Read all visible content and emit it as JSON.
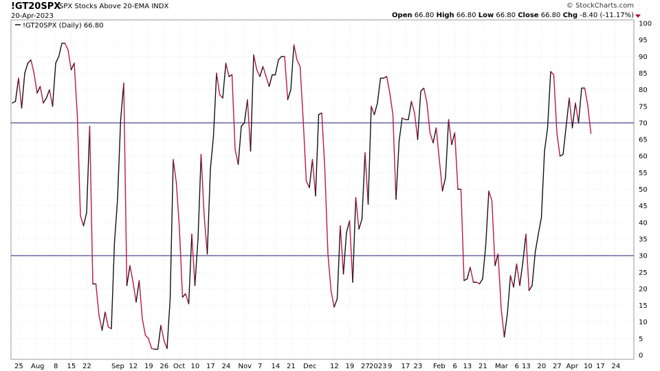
{
  "header": {
    "symbol": "!GT20SPX",
    "description": "SPX Stocks Above 20-EMA INDX",
    "date": "20-Apr-2023",
    "credit": "© StockCharts.com",
    "open_label": "Open",
    "open": "66.80",
    "high_label": "High",
    "high": "66.80",
    "low_label": "Low",
    "low": "66.80",
    "close_label": "Close",
    "close": "66.80",
    "chg_label": "Chg",
    "chg": "-8.40 (-11.17%)"
  },
  "legend": {
    "text": "!GT20SPX (Daily) 66.80"
  },
  "colors": {
    "up": "#111111",
    "down": "#c0143c",
    "reference": "#1a1a6e",
    "grid": "#d9d9d9"
  },
  "chart_data": {
    "type": "line",
    "title": "SPX Stocks Above 20-EMA",
    "ylim": [
      0,
      100
    ],
    "yticks": [
      0,
      5,
      10,
      15,
      20,
      25,
      30,
      35,
      40,
      45,
      50,
      55,
      60,
      65,
      70,
      75,
      80,
      85,
      90,
      95,
      100
    ],
    "reference_lines": [
      70,
      30
    ],
    "x_count": 190,
    "xticks": [
      {
        "i": 2,
        "label": "25"
      },
      {
        "i": 8,
        "label": "Aug"
      },
      {
        "i": 14,
        "label": "8"
      },
      {
        "i": 19,
        "label": "15"
      },
      {
        "i": 24,
        "label": "22"
      },
      {
        "i": 34,
        "label": "Sep"
      },
      {
        "i": 39,
        "label": "12"
      },
      {
        "i": 44,
        "label": "19"
      },
      {
        "i": 49,
        "label": "26"
      },
      {
        "i": 54,
        "label": "Oct"
      },
      {
        "i": 59,
        "label": "10"
      },
      {
        "i": 64,
        "label": "17"
      },
      {
        "i": 69,
        "label": "24"
      },
      {
        "i": 75,
        "label": "Nov"
      },
      {
        "i": 80,
        "label": "7"
      },
      {
        "i": 85,
        "label": "14"
      },
      {
        "i": 90,
        "label": "21"
      },
      {
        "i": 96,
        "label": "Dec"
      },
      {
        "i": 104,
        "label": "12"
      },
      {
        "i": 109,
        "label": "19"
      },
      {
        "i": 114,
        "label": "27"
      },
      {
        "i": 118,
        "label": "2023"
      },
      {
        "i": 122,
        "label": "9"
      },
      {
        "i": 127,
        "label": "17"
      },
      {
        "i": 131,
        "label": "23"
      },
      {
        "i": 138,
        "label": "Feb"
      },
      {
        "i": 143,
        "label": "6"
      },
      {
        "i": 147,
        "label": "13"
      },
      {
        "i": 152,
        "label": "21"
      },
      {
        "i": 158,
        "label": "Mar"
      },
      {
        "i": 163,
        "label": "6"
      },
      {
        "i": 166,
        "label": "13"
      },
      {
        "i": 171,
        "label": "20"
      },
      {
        "i": 176,
        "label": "27"
      },
      {
        "i": 181,
        "label": "Apr"
      },
      {
        "i": 186,
        "label": "10"
      },
      {
        "i": 190,
        "label": "17"
      },
      {
        "i": 195,
        "label": "24"
      }
    ],
    "series": [
      {
        "values": [
          76,
          76.5,
          83.5,
          74.5,
          85,
          88,
          89,
          85,
          79,
          81,
          76,
          77.5,
          80,
          75,
          88,
          90,
          94,
          94,
          92,
          86,
          88,
          72,
          42,
          39,
          43,
          69,
          21.5,
          21.5,
          12,
          7.5,
          13,
          8.5,
          8,
          34,
          47,
          71,
          82,
          21,
          27,
          22,
          16,
          22.5,
          11,
          6,
          5,
          2,
          1.8,
          1.8,
          9,
          4.5,
          2,
          17,
          59,
          52,
          38,
          17.5,
          18.5,
          15.5,
          36.5,
          21,
          35,
          60.5,
          42,
          30.5,
          56,
          66,
          85,
          78.5,
          77.5,
          88,
          84,
          84.5,
          62,
          57.5,
          69,
          70,
          77,
          61.5,
          90.5,
          86,
          84,
          87,
          84,
          81,
          84.5,
          84.5,
          89,
          90,
          90,
          77,
          80,
          93.5,
          89,
          87,
          71,
          52.5,
          50.5,
          59,
          48,
          72.5,
          73,
          56,
          30.5,
          19.5,
          14.5,
          17,
          39,
          24.5,
          37,
          40.5,
          22,
          47.5,
          38,
          41,
          61,
          45.5,
          75,
          72.5,
          76,
          83.5,
          83.5,
          84,
          79,
          72.5,
          47,
          64.5,
          71.5,
          71,
          71,
          76.5,
          73,
          65,
          79.5,
          80.5,
          76,
          67,
          64,
          68.5,
          59,
          49.5,
          53.5,
          71,
          63.5,
          67,
          50,
          50,
          22.5,
          23,
          26.5,
          22,
          22,
          21.5,
          23,
          33,
          49.5,
          46.5,
          27,
          30.5,
          14,
          5.5,
          12.5,
          24,
          20.5,
          27.5,
          21,
          28,
          36.5,
          19.5,
          21,
          31,
          36.5,
          41.5,
          61.5,
          68.5,
          85.5,
          84.5,
          67,
          60,
          60.5,
          69,
          77.5,
          68.5,
          76,
          70,
          80.5,
          80.5,
          75.2,
          66.8
        ]
      }
    ]
  }
}
